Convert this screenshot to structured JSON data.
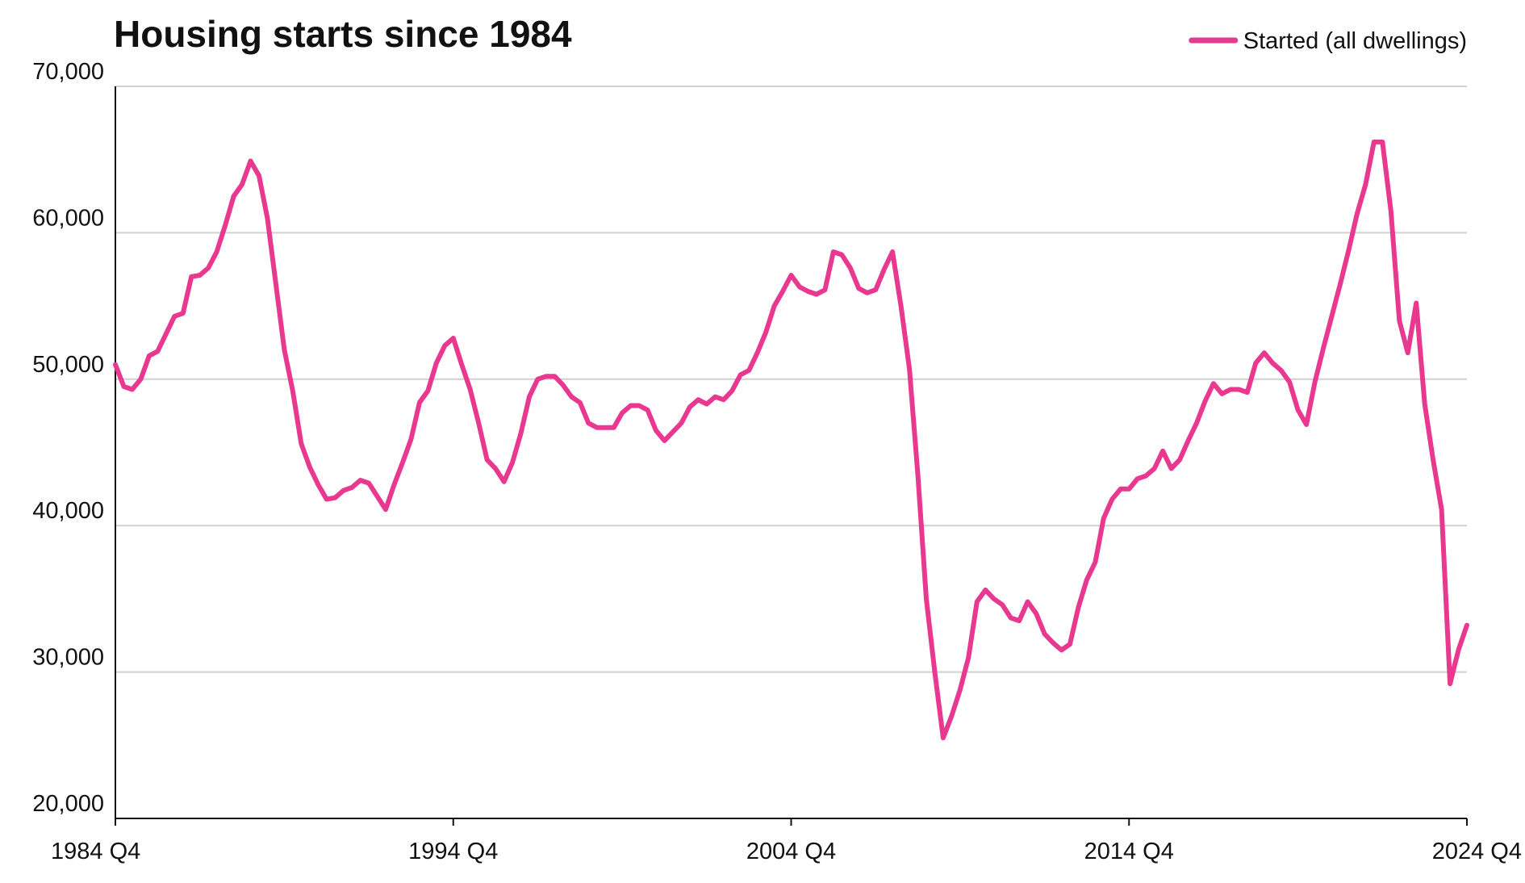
{
  "chart_data": {
    "type": "line",
    "title": "Housing starts since 1984",
    "categories": [
      "1984 Q4",
      null,
      null,
      null,
      null,
      null,
      null,
      null,
      null,
      null,
      null,
      null,
      null,
      null,
      null,
      null,
      null,
      null,
      null,
      null,
      null,
      null,
      null,
      null,
      null,
      null,
      null,
      null,
      null,
      null,
      null,
      null,
      null,
      null,
      null,
      null,
      null,
      null,
      null,
      null,
      "1994 Q4",
      null,
      null,
      null,
      null,
      null,
      null,
      null,
      null,
      null,
      null,
      null,
      null,
      null,
      null,
      null,
      null,
      null,
      null,
      null,
      null,
      null,
      null,
      null,
      null,
      null,
      null,
      null,
      null,
      null,
      null,
      null,
      null,
      null,
      null,
      null,
      null,
      null,
      null,
      null,
      "2004 Q4",
      null,
      null,
      null,
      null,
      null,
      null,
      null,
      null,
      null,
      null,
      null,
      null,
      null,
      null,
      null,
      null,
      null,
      null,
      null,
      null,
      null,
      null,
      null,
      null,
      null,
      null,
      null,
      null,
      null,
      null,
      null,
      null,
      null,
      null,
      null,
      null,
      null,
      null,
      null,
      "2014 Q4",
      null,
      null,
      null,
      null,
      null,
      null,
      null,
      null,
      null,
      null,
      null,
      null,
      null,
      null,
      null,
      null,
      null,
      null,
      null,
      null,
      null,
      null,
      null,
      null,
      null,
      null,
      null,
      null,
      null,
      null,
      null,
      null,
      null,
      null,
      null,
      null,
      null,
      null,
      null,
      "2024 Q4"
    ],
    "series": [
      {
        "name": "Started (all dwellings)",
        "color": "#e8388f",
        "values": [
          51000,
          49500,
          49300,
          50000,
          51600,
          51900,
          53100,
          54300,
          54500,
          57000,
          57100,
          57600,
          58700,
          60500,
          62500,
          63300,
          64900,
          63900,
          61000,
          56500,
          52000,
          49200,
          45600,
          44000,
          42800,
          41800,
          41900,
          42400,
          42600,
          43100,
          42900,
          42000,
          41100,
          42800,
          44300,
          45900,
          48400,
          49200,
          51100,
          52300,
          52800,
          51000,
          49300,
          47000,
          44500,
          43900,
          43000,
          44300,
          46300,
          48800,
          50000,
          50200,
          50200,
          49600,
          48800,
          48400,
          47000,
          46700,
          46700,
          46700,
          47700,
          48200,
          48200,
          47900,
          46500,
          45800,
          46400,
          47000,
          48100,
          48600,
          48300,
          48800,
          48600,
          49200,
          50300,
          50600,
          51800,
          53200,
          55000,
          56000,
          57100,
          56300,
          56000,
          55800,
          56100,
          58700,
          58500,
          57600,
          56200,
          55900,
          56100,
          57500,
          58700,
          55000,
          50700,
          43500,
          35000,
          30000,
          25500,
          27000,
          28800,
          31000,
          34800,
          35600,
          35000,
          34600,
          33700,
          33500,
          34800,
          34000,
          32600,
          32000,
          31500,
          31900,
          34400,
          36300,
          37500,
          40500,
          41800,
          42500,
          42500,
          43200,
          43400,
          43900,
          45100,
          43900,
          44500,
          45800,
          47000,
          48500,
          49700,
          49000,
          49300,
          49300,
          49100,
          51100,
          51800,
          51100,
          50600,
          49800,
          47900,
          46900,
          49800,
          52100,
          54300,
          56500,
          58800,
          61300,
          63300,
          66200,
          66200,
          61500,
          54000,
          51800,
          55200,
          48300,
          44500,
          41100,
          29200,
          31500,
          33200
        ]
      }
    ],
    "ylim": [
      20000,
      70000
    ],
    "yticks": [
      {
        "value": 20000,
        "label": "20,000"
      },
      {
        "value": 30000,
        "label": "30,000"
      },
      {
        "value": 40000,
        "label": "40,000"
      },
      {
        "value": 50000,
        "label": "50,000"
      },
      {
        "value": 60000,
        "label": "60,000"
      },
      {
        "value": 70000,
        "label": "70,000"
      }
    ],
    "grid": true,
    "legend": "top-right"
  }
}
